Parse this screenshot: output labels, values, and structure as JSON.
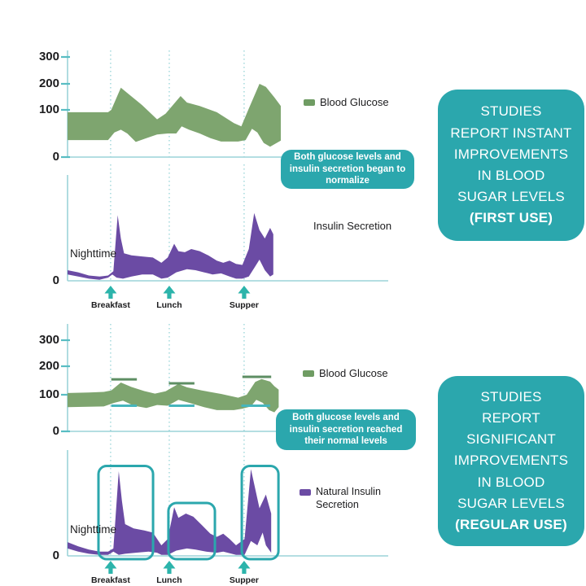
{
  "theme": {
    "teal_box": "#2ba7ad",
    "teal_arrow": "#2cb4ab",
    "axis": "#9bd4d8",
    "tick": "#58bdc3",
    "gridline": "#8ccfd3",
    "glucose_green": "#7ea56f",
    "insulin_purple": "#6b4ba4",
    "dash_green": "#5d8e63",
    "dash_teal": "#46b5bc",
    "text_dark": "#1c1c1e",
    "text_light": "#ffffff"
  },
  "annotations": [
    {
      "text": "Both glucose levels and insulin secretion began to normalize"
    },
    {
      "text": "Both glucose levels and insulin secretion reached their normal levels"
    }
  ],
  "panels": [
    {
      "lines": [
        "STUDIES",
        "REPORT INSTANT",
        "IMPROVEMENTS",
        "IN BLOOD",
        "SUGAR LEVELS"
      ],
      "emphasis": "(FIRST USE)"
    },
    {
      "lines": [
        "STUDIES",
        "REPORT",
        "SIGNIFICANT",
        "IMPROVEMENTS",
        "IN BLOOD",
        "SUGAR LEVELS"
      ],
      "emphasis": "(REGULAR USE)"
    }
  ],
  "chart_data": [
    {
      "id": "blood-glucose-first-use",
      "type": "area",
      "legend": {
        "label": "Blood Glucose",
        "swatch": "#6f9c63"
      },
      "ylim": [
        0,
        300
      ],
      "y_ticks": [
        {
          "v": 300,
          "label": "300"
        },
        {
          "v": 200,
          "label": "200"
        },
        {
          "v": 100,
          "label": "100"
        },
        {
          "v": 0,
          "label": "0"
        }
      ],
      "x_markers": [
        {
          "label": "Breakfast",
          "x": 0.202
        },
        {
          "label": "Lunch",
          "x": 0.477
        },
        {
          "label": "Supper",
          "x": 0.828
        }
      ],
      "band": {
        "color": "#7ea56f",
        "upper": [
          [
            0,
            95
          ],
          [
            0.19,
            95
          ],
          [
            0.205,
            100
          ],
          [
            0.25,
            185
          ],
          [
            0.29,
            158
          ],
          [
            0.35,
            118
          ],
          [
            0.42,
            80
          ],
          [
            0.46,
            92
          ],
          [
            0.53,
            153
          ],
          [
            0.56,
            128
          ],
          [
            0.62,
            115
          ],
          [
            0.7,
            95
          ],
          [
            0.78,
            72
          ],
          [
            0.815,
            65
          ],
          [
            0.85,
            105
          ],
          [
            0.9,
            200
          ],
          [
            0.93,
            188
          ],
          [
            0.97,
            148
          ],
          [
            1,
            115
          ]
        ],
        "lower": [
          [
            0,
            36
          ],
          [
            0.19,
            36
          ],
          [
            0.22,
            52
          ],
          [
            0.25,
            58
          ],
          [
            0.28,
            50
          ],
          [
            0.32,
            32
          ],
          [
            0.37,
            40
          ],
          [
            0.42,
            48
          ],
          [
            0.47,
            50
          ],
          [
            0.51,
            50
          ],
          [
            0.535,
            65
          ],
          [
            0.57,
            58
          ],
          [
            0.62,
            50
          ],
          [
            0.67,
            40
          ],
          [
            0.72,
            33
          ],
          [
            0.8,
            33
          ],
          [
            0.835,
            36
          ],
          [
            0.865,
            60
          ],
          [
            0.89,
            52
          ],
          [
            0.92,
            30
          ],
          [
            0.95,
            22
          ],
          [
            1,
            35
          ]
        ]
      }
    },
    {
      "id": "insulin-secretion-first-use",
      "type": "area",
      "legend": {
        "label": "Insulin Secretion",
        "swatch": null
      },
      "ylim": [
        0,
        100
      ],
      "y_ticks": [
        {
          "v": 0,
          "label": "0"
        }
      ],
      "nighttime_label": "Nighttime",
      "x_markers": [
        {
          "label": "Breakfast",
          "x": 0.202
        },
        {
          "label": "Lunch",
          "x": 0.477
        },
        {
          "label": "Supper",
          "x": 0.828
        }
      ],
      "band": {
        "color": "#6b4ba4",
        "upper": [
          [
            0,
            10
          ],
          [
            0.05,
            8
          ],
          [
            0.1,
            5
          ],
          [
            0.15,
            4
          ],
          [
            0.19,
            5
          ],
          [
            0.215,
            9
          ],
          [
            0.235,
            62
          ],
          [
            0.25,
            40
          ],
          [
            0.265,
            26
          ],
          [
            0.3,
            24
          ],
          [
            0.35,
            23
          ],
          [
            0.4,
            22
          ],
          [
            0.44,
            17
          ],
          [
            0.47,
            22
          ],
          [
            0.5,
            35
          ],
          [
            0.52,
            28
          ],
          [
            0.55,
            27
          ],
          [
            0.58,
            30
          ],
          [
            0.62,
            28
          ],
          [
            0.66,
            24
          ],
          [
            0.7,
            19
          ],
          [
            0.73,
            17
          ],
          [
            0.76,
            19
          ],
          [
            0.79,
            16
          ],
          [
            0.82,
            15
          ],
          [
            0.85,
            30
          ],
          [
            0.875,
            64
          ],
          [
            0.9,
            48
          ],
          [
            0.925,
            40
          ],
          [
            0.95,
            50
          ],
          [
            0.965,
            44
          ]
        ],
        "lower": [
          [
            0,
            6
          ],
          [
            0.05,
            4
          ],
          [
            0.1,
            2
          ],
          [
            0.15,
            1
          ],
          [
            0.19,
            3
          ],
          [
            0.21,
            6
          ],
          [
            0.23,
            3
          ],
          [
            0.26,
            2
          ],
          [
            0.3,
            4
          ],
          [
            0.35,
            6
          ],
          [
            0.4,
            6
          ],
          [
            0.44,
            2
          ],
          [
            0.47,
            3
          ],
          [
            0.51,
            8
          ],
          [
            0.56,
            11
          ],
          [
            0.6,
            10
          ],
          [
            0.64,
            8
          ],
          [
            0.68,
            6
          ],
          [
            0.72,
            7
          ],
          [
            0.76,
            4
          ],
          [
            0.79,
            2
          ],
          [
            0.82,
            2
          ],
          [
            0.85,
            4
          ],
          [
            0.875,
            12
          ],
          [
            0.9,
            20
          ],
          [
            0.925,
            10
          ],
          [
            0.95,
            4
          ],
          [
            0.965,
            6
          ]
        ]
      }
    },
    {
      "id": "blood-glucose-regular-use",
      "type": "area",
      "legend": {
        "label": "Blood Glucose",
        "swatch": "#6f9c63"
      },
      "ylim": [
        0,
        300
      ],
      "y_ticks": [
        {
          "v": 300,
          "label": "300"
        },
        {
          "v": 200,
          "label": "200"
        },
        {
          "v": 100,
          "label": "100"
        },
        {
          "v": 0,
          "label": "0"
        }
      ],
      "x_markers": [
        {
          "label": "Breakfast",
          "x": 0.202
        },
        {
          "label": "Lunch",
          "x": 0.477
        },
        {
          "label": "Supper",
          "x": 0.828
        }
      ],
      "reference_dashes": [
        {
          "x1": 0.205,
          "x2": 0.325,
          "v": 154,
          "color": "#5d8e63"
        },
        {
          "x1": 0.475,
          "x2": 0.595,
          "v": 140,
          "color": "#5d8e63"
        },
        {
          "x1": 0.82,
          "x2": 0.955,
          "v": 163,
          "color": "#5d8e63"
        },
        {
          "x1": 0.205,
          "x2": 0.325,
          "v": 70,
          "color": "#46b5bc"
        },
        {
          "x1": 0.475,
          "x2": 0.595,
          "v": 70,
          "color": "#46b5bc"
        },
        {
          "x1": 0.815,
          "x2": 0.95,
          "v": 70,
          "color": "#46b5bc"
        }
      ],
      "band": {
        "color": "#7ea56f",
        "upper": [
          [
            0,
            106
          ],
          [
            0.1,
            108
          ],
          [
            0.17,
            110
          ],
          [
            0.205,
            115
          ],
          [
            0.25,
            143
          ],
          [
            0.3,
            127
          ],
          [
            0.36,
            113
          ],
          [
            0.41,
            104
          ],
          [
            0.46,
            112
          ],
          [
            0.52,
            138
          ],
          [
            0.56,
            126
          ],
          [
            0.63,
            115
          ],
          [
            0.72,
            103
          ],
          [
            0.8,
            92
          ],
          [
            0.84,
            100
          ],
          [
            0.88,
            145
          ],
          [
            0.91,
            155
          ],
          [
            0.95,
            146
          ],
          [
            0.97,
            130
          ],
          [
            0.99,
            118
          ]
        ],
        "lower": [
          [
            0,
            66
          ],
          [
            0.17,
            68
          ],
          [
            0.22,
            78
          ],
          [
            0.26,
            84
          ],
          [
            0.31,
            70
          ],
          [
            0.37,
            64
          ],
          [
            0.42,
            72
          ],
          [
            0.47,
            70
          ],
          [
            0.52,
            86
          ],
          [
            0.57,
            78
          ],
          [
            0.64,
            66
          ],
          [
            0.7,
            58
          ],
          [
            0.78,
            58
          ],
          [
            0.82,
            62
          ],
          [
            0.86,
            68
          ],
          [
            0.885,
            86
          ],
          [
            0.915,
            78
          ],
          [
            0.945,
            58
          ],
          [
            0.97,
            52
          ],
          [
            0.99,
            66
          ]
        ]
      }
    },
    {
      "id": "natural-insulin-secretion-regular-use",
      "type": "area",
      "legend": {
        "label": "Natural Insulin Secretion",
        "swatch": "#6b4ba4"
      },
      "ylim": [
        0,
        100
      ],
      "y_ticks": [
        {
          "v": 0,
          "label": "0"
        }
      ],
      "nighttime_label": "Nighttime",
      "x_markers": [
        {
          "label": "Breakfast",
          "x": 0.202
        },
        {
          "label": "Lunch",
          "x": 0.477
        },
        {
          "label": "Supper",
          "x": 0.828
        }
      ],
      "highlight_boxes": [
        {
          "x1": 0.145,
          "x2": 0.401,
          "v_top": 85
        },
        {
          "x1": 0.473,
          "x2": 0.691,
          "v_top": 50
        },
        {
          "x1": 0.817,
          "x2": 0.989,
          "v_top": 85
        }
      ],
      "band": {
        "color": "#6b4ba4",
        "upper": [
          [
            0,
            13
          ],
          [
            0.05,
            9
          ],
          [
            0.1,
            6
          ],
          [
            0.15,
            4
          ],
          [
            0.19,
            4
          ],
          [
            0.215,
            7
          ],
          [
            0.24,
            80
          ],
          [
            0.255,
            52
          ],
          [
            0.27,
            30
          ],
          [
            0.31,
            26
          ],
          [
            0.36,
            24
          ],
          [
            0.4,
            22
          ],
          [
            0.44,
            10
          ],
          [
            0.47,
            16
          ],
          [
            0.5,
            46
          ],
          [
            0.52,
            36
          ],
          [
            0.555,
            40
          ],
          [
            0.59,
            37
          ],
          [
            0.63,
            29
          ],
          [
            0.67,
            21
          ],
          [
            0.7,
            18
          ],
          [
            0.73,
            21
          ],
          [
            0.76,
            16
          ],
          [
            0.79,
            10
          ],
          [
            0.83,
            16
          ],
          [
            0.86,
            82
          ],
          [
            0.9,
            45
          ],
          [
            0.93,
            58
          ],
          [
            0.955,
            40
          ]
        ],
        "lower": [
          [
            0,
            7
          ],
          [
            0.05,
            4
          ],
          [
            0.1,
            2
          ],
          [
            0.15,
            1
          ],
          [
            0.19,
            1
          ],
          [
            0.215,
            4
          ],
          [
            0.24,
            1
          ],
          [
            0.27,
            2
          ],
          [
            0.32,
            3
          ],
          [
            0.38,
            4
          ],
          [
            0.42,
            3
          ],
          [
            0.44,
            1
          ],
          [
            0.47,
            1
          ],
          [
            0.51,
            5
          ],
          [
            0.56,
            7
          ],
          [
            0.6,
            6
          ],
          [
            0.65,
            4
          ],
          [
            0.7,
            3
          ],
          [
            0.73,
            4
          ],
          [
            0.77,
            2
          ],
          [
            0.79,
            1
          ],
          [
            0.83,
            1
          ],
          [
            0.86,
            14
          ],
          [
            0.89,
            10
          ],
          [
            0.915,
            22
          ],
          [
            0.93,
            10
          ],
          [
            0.955,
            3
          ]
        ]
      }
    }
  ]
}
